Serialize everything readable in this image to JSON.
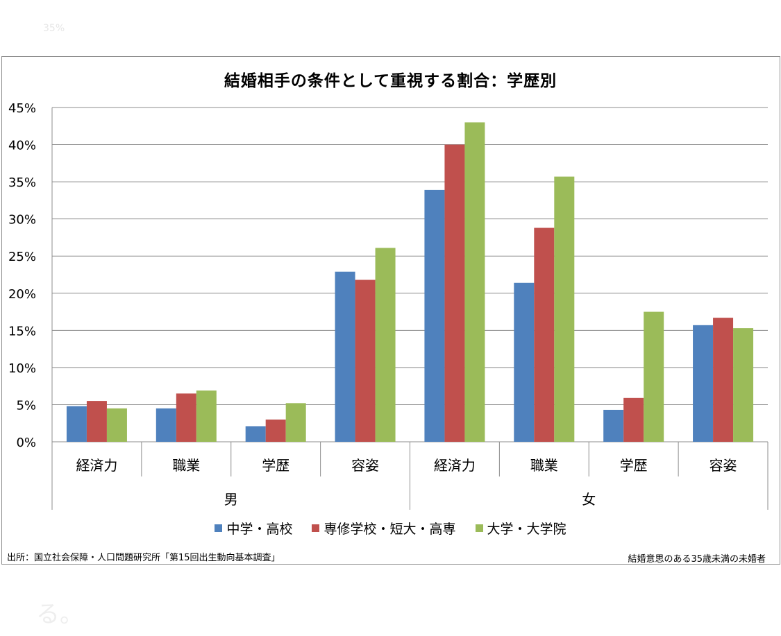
{
  "background": {
    "faded_axis_label": "35%",
    "after_text": "る。"
  },
  "colors": {
    "series1": "#4f81bd",
    "series2": "#c0504d",
    "series3": "#9bbb59",
    "grid": "#8c8c8c"
  },
  "footer": {
    "source": "出所：国立社会保障・人口問題研究所「第15回出生動向基本調査」",
    "note": "結婚意思のある35歳未満の未婚者"
  },
  "chart_data": {
    "type": "bar",
    "title": "結婚相手の条件として重視する割合：学歴別",
    "ylim": [
      0,
      45
    ],
    "yticks": [
      "0%",
      "5%",
      "10%",
      "15%",
      "20%",
      "25%",
      "30%",
      "35%",
      "40%",
      "45%"
    ],
    "groups": [
      {
        "name": "男",
        "categories": [
          "経済力",
          "職業",
          "学歴",
          "容姿"
        ]
      },
      {
        "name": "女",
        "categories": [
          "経済力",
          "職業",
          "学歴",
          "容姿"
        ]
      }
    ],
    "series": [
      {
        "name": "中学・高校",
        "values": [
          4.8,
          4.5,
          2.1,
          22.9,
          33.9,
          21.4,
          4.3,
          15.7
        ]
      },
      {
        "name": "専修学校・短大・高専",
        "values": [
          5.5,
          6.5,
          3.0,
          21.8,
          40.0,
          28.8,
          5.9,
          16.7
        ]
      },
      {
        "name": "大学・大学院",
        "values": [
          4.5,
          6.9,
          5.2,
          26.1,
          43.0,
          35.7,
          17.5,
          15.3
        ]
      }
    ],
    "grid": true,
    "legend": "bottom"
  }
}
